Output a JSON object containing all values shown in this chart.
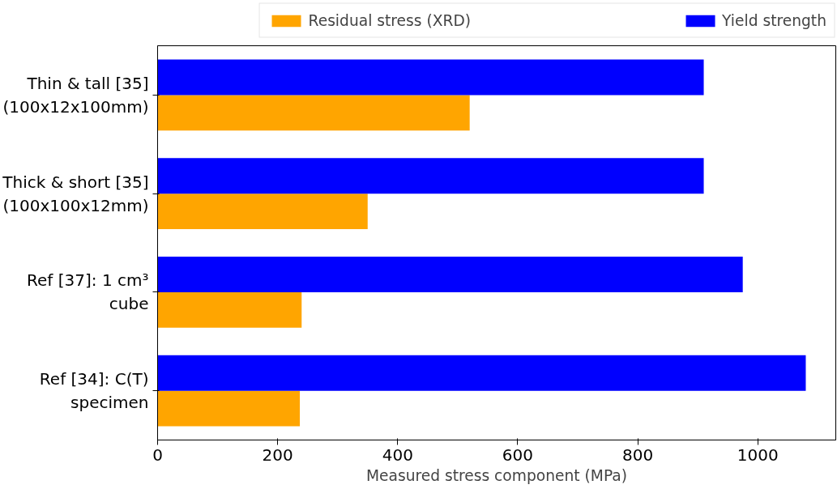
{
  "chart_data": {
    "type": "bar",
    "orientation": "horizontal",
    "xlabel": "Measured stress component (MPa)",
    "categories": [
      "Thin & tall [35]\n(100x12x100mm)",
      "Thick & short [35]\n(100x100x12mm)",
      "Ref [37]: 1 cm³\ncube",
      "Ref [34]: C(T)\nspecimen"
    ],
    "series": [
      {
        "name": "Residual stress (XRD)",
        "color": "#ffa500",
        "values": [
          520,
          350,
          240,
          237
        ]
      },
      {
        "name": "Yield strength",
        "color": "#0000ff",
        "values": [
          910,
          910,
          975,
          1080
        ]
      }
    ],
    "xlim": [
      0,
      1130
    ],
    "xticks": [
      0,
      200,
      400,
      600,
      800,
      1000
    ],
    "grid": false,
    "legend": "top"
  }
}
